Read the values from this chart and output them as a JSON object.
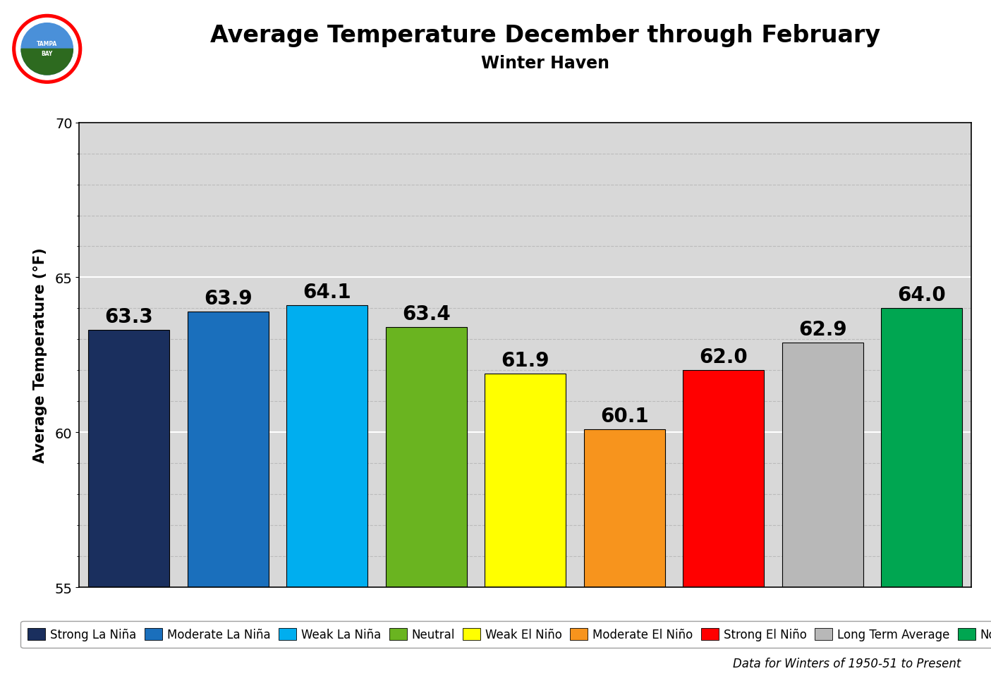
{
  "title": "Average Temperature December through February",
  "subtitle": "Winter Haven",
  "ylabel": "Average Temperature (°F)",
  "ylim": [
    55,
    70
  ],
  "yticks": [
    55,
    60,
    65,
    70
  ],
  "categories": [
    "Strong La Niña",
    "Moderate La Niña",
    "Weak La Niña",
    "Neutral",
    "Weak El Niño",
    "Moderate El Niño",
    "Strong El Niño",
    "Long Term Average",
    "Normal"
  ],
  "values": [
    63.3,
    63.9,
    64.1,
    63.4,
    61.9,
    60.1,
    62.0,
    62.9,
    64.0
  ],
  "colors": [
    "#1a2f5e",
    "#1a6fbc",
    "#00aeef",
    "#6ab420",
    "#ffff00",
    "#f7941d",
    "#ff0000",
    "#b8b8b8",
    "#00a651"
  ],
  "bar_edgecolor": "#000000",
  "label_fontsize": 20,
  "title_fontsize": 24,
  "subtitle_fontsize": 17,
  "ylabel_fontsize": 15,
  "ytick_fontsize": 14,
  "legend_fontsize": 12,
  "annotation_fontsize": 12,
  "annotation_text": "Data for Winters of 1950-51 to Present",
  "fig_bg_color": "#ffffff",
  "plot_bg_color": "#d8d8d8",
  "major_grid_color": "#ffffff",
  "minor_grid_color": "#bbbbbb"
}
